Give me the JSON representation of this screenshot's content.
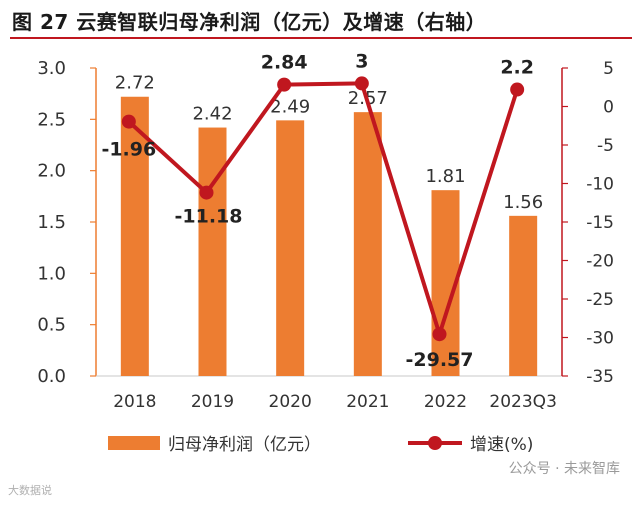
{
  "title": "图 27 云赛智联归母净利润（亿元）及增速（右轴）",
  "chart_data": {
    "type": "bar+line",
    "categories": [
      "2018",
      "2019",
      "2020",
      "2021",
      "2022",
      "2023Q3"
    ],
    "series": [
      {
        "name": "归母净利润（亿元）",
        "type": "bar",
        "axis": "left",
        "values": [
          2.72,
          2.42,
          2.49,
          2.57,
          1.81,
          1.56
        ],
        "labels": [
          "2.72",
          "2.42",
          "2.49",
          "2.57",
          "1.81",
          "1.56"
        ]
      },
      {
        "name": "增速(%)",
        "type": "line",
        "axis": "right",
        "values": [
          -1.96,
          -11.18,
          2.84,
          3,
          -29.57,
          2.2
        ],
        "labels": [
          "-1.96",
          "-11.18",
          "2.84",
          "3",
          "-29.57",
          "2.2"
        ]
      }
    ],
    "ylim_left": [
      0,
      3
    ],
    "yticks_left": [
      "0.0",
      "0.5",
      "1.0",
      "1.5",
      "2.0",
      "2.5",
      "3.0"
    ],
    "ylim_right": [
      -35,
      5
    ],
    "yticks_right": [
      "-35",
      "-30",
      "-25",
      "-20",
      "-15",
      "-10",
      "-5",
      "0",
      "5"
    ],
    "legend": [
      "归母净利润（亿元）",
      "增速(%)"
    ],
    "legend_position": "bottom"
  },
  "watermark": "公众号 · 未来智库",
  "watermark2": "大数据说",
  "colors": {
    "bar": "#ed7d31",
    "line": "#c0171f",
    "axis_left": "#ed7d31",
    "axis_right": "#c0171f",
    "rule": "#c0171f"
  }
}
